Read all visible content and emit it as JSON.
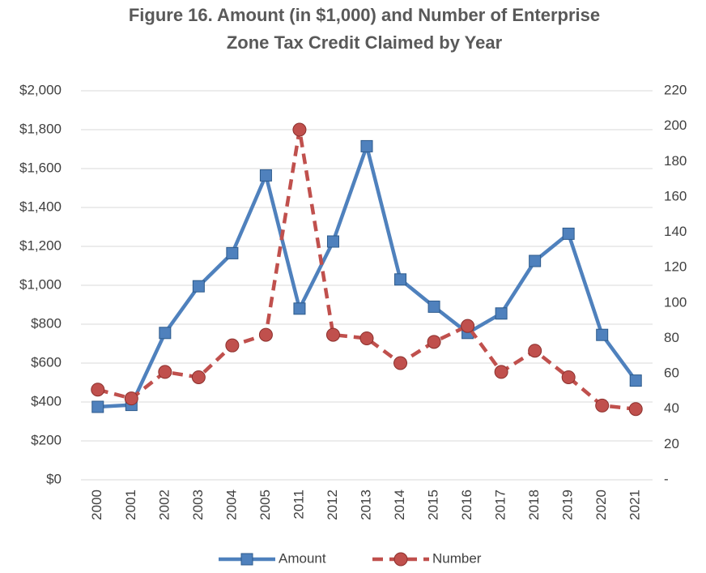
{
  "chart_data": {
    "type": "line",
    "title": "Figure 16. Amount (in $1,000) and Number of  Enterprise\nZone Tax Credit Claimed by Year",
    "categories": [
      "2000",
      "2001",
      "2002",
      "2003",
      "2004",
      "2005",
      "2011",
      "2012",
      "2013",
      "2014",
      "2015",
      "2016",
      "2017",
      "2018",
      "2019",
      "2020",
      "2021"
    ],
    "series": [
      {
        "name": "Amount",
        "color": "#4f81bd",
        "marker": "square",
        "line_style": "solid",
        "values": [
          375,
          385,
          755,
          995,
          1165,
          1565,
          880,
          1225,
          1715,
          1030,
          890,
          755,
          855,
          1125,
          1265,
          745,
          510
        ]
      },
      {
        "name": "Number",
        "color": "#c0504d",
        "marker": "circle",
        "line_style": "dashed",
        "axis": "y2",
        "values": [
          51,
          46,
          61,
          58,
          76,
          82,
          198,
          82,
          80,
          66,
          78,
          87,
          61,
          73,
          58,
          42,
          40
        ]
      }
    ],
    "ylim": [
      0,
      2000
    ],
    "yticks": [
      {
        "value": 0,
        "label": "$0"
      },
      {
        "value": 200,
        "label": "$200"
      },
      {
        "value": 400,
        "label": "$400"
      },
      {
        "value": 600,
        "label": "$600"
      },
      {
        "value": 800,
        "label": "$800"
      },
      {
        "value": 1000,
        "label": "$1,000"
      },
      {
        "value": 1200,
        "label": "$1,200"
      },
      {
        "value": 1400,
        "label": "$1,400"
      },
      {
        "value": 1600,
        "label": "$1,600"
      },
      {
        "value": 1800,
        "label": "$1,800"
      },
      {
        "value": 2000,
        "label": "$2,000"
      }
    ],
    "y2lim": [
      0,
      220
    ],
    "y2ticks": [
      {
        "value": 0,
        "label": "-"
      },
      20,
      40,
      60,
      80,
      100,
      120,
      140,
      160,
      180,
      200,
      220
    ],
    "grid": true,
    "legend": "bottom"
  }
}
